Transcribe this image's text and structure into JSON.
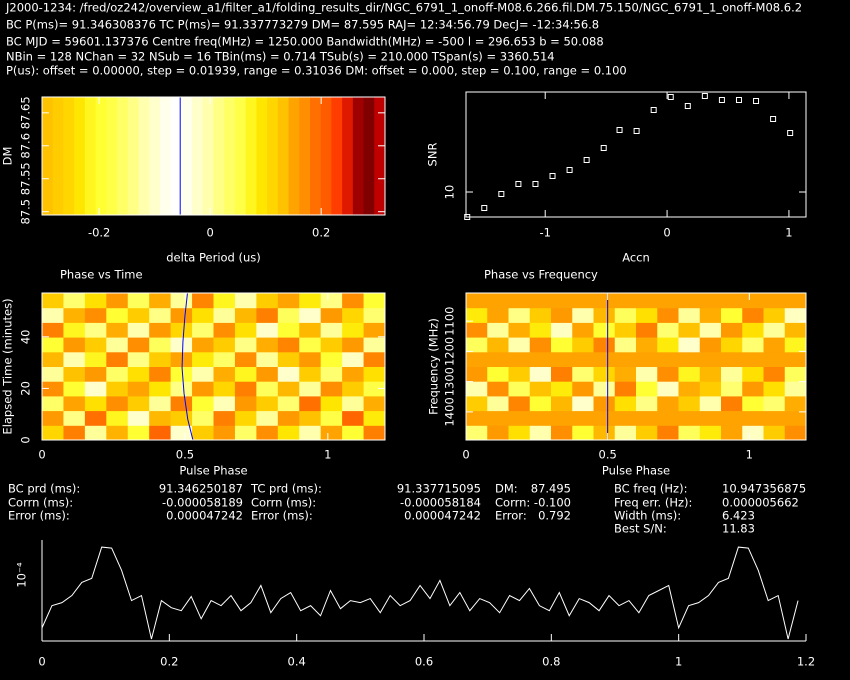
{
  "header": {
    "lines": [
      "J2000-1234: /fred/oz242/overview_a1/filter_a1/folding_results_dir/NGC_6791_1_onoff-M08.6.266.fil.DM.75.150/NGC_6791_1_onoff-M08.6.2",
      "BC P(ms)= 91.346308376 TC P(ms)= 91.337773279 DM= 87.595 RAJ= 12:34:56.79 DecJ= -12:34:56.8",
      "BC MJD = 59601.137376 Centre freq(MHz) = 1250.000 Bandwidth(MHz) = -500 l = 296.653 b = 50.088",
      "NBin = 128 NChan = 32 NSub = 16 TBin(ms) = 0.714 TSub(s) = 210.000 TSpan(s) = 3360.514",
      "P(us): offset = 0.00000, step = 0.01939, range = 0.31036 DM: offset = 0.000, step = 0.100, range = 0.100"
    ]
  },
  "stats": {
    "columns": [
      {
        "labels": [
          "BC prd (ms):",
          "Corrn (ms):",
          "Error (ms):"
        ],
        "values": [
          "91.346250187",
          "-0.000058189",
          "0.000047242"
        ]
      },
      {
        "labels": [
          "TC prd (ms):",
          "Corrn (ms):",
          "Error (ms):"
        ],
        "values": [
          "91.337715095",
          "-0.000058184",
          "0.000047242"
        ]
      },
      {
        "labels": [
          "DM:",
          "Corrn:",
          "Error:"
        ],
        "values": [
          "87.495",
          "-0.100",
          "0.792"
        ]
      },
      {
        "labels": [
          "BC freq (Hz):",
          "Freq err. (Hz):",
          "Width (ms):",
          "Best S/N:"
        ],
        "values": [
          "10.947356875",
          "0.000005662",
          "6.423",
          "11.83"
        ]
      }
    ]
  },
  "chart_data": [
    {
      "type": "heatmap",
      "xlabel": "delta Period (us)",
      "ylabel": "DM",
      "colormap": "heat",
      "xlim": [
        -0.303,
        0.315
      ],
      "ylim": [
        87.495,
        87.674
      ],
      "xticks": [
        -0.2,
        0,
        0.2
      ],
      "yticks": [
        87.5,
        87.55,
        87.6,
        87.65
      ],
      "z": [
        [
          0.68,
          0.7,
          0.72,
          0.75,
          0.78,
          0.8,
          0.82,
          0.85,
          0.88,
          0.92,
          0.95,
          0.98,
          1.0,
          0.98,
          0.95,
          0.92,
          0.88,
          0.85,
          0.82,
          0.78,
          0.75,
          0.72,
          0.68,
          0.62,
          0.58,
          0.52,
          0.48,
          0.42,
          0.35,
          0.25,
          0.2,
          0.3
        ]
      ],
      "marker_x": -0.054,
      "marker_color": "#0000ff"
    },
    {
      "type": "scatter",
      "xlabel": "Accn",
      "ylabel": "SNR",
      "color": "#ffffff",
      "xlim": [
        -1.65,
        1.14
      ],
      "ylim": [
        9.5,
        12.0
      ],
      "xticks": [
        -1,
        0,
        1
      ],
      "yticks": [
        10
      ],
      "x": [
        -1.64,
        -1.5,
        -1.36,
        -1.22,
        -1.08,
        -0.94,
        -0.8,
        -0.66,
        -0.52,
        -0.39,
        -0.25,
        -0.11,
        0.03,
        0.17,
        0.31,
        0.45,
        0.59,
        0.73,
        0.87,
        1.01
      ],
      "values": [
        9.5,
        9.68,
        9.96,
        10.16,
        10.16,
        10.32,
        10.44,
        10.64,
        10.88,
        11.24,
        11.22,
        11.64,
        11.9,
        11.72,
        11.92,
        11.84,
        11.84,
        11.82,
        11.46,
        11.18
      ]
    },
    {
      "type": "heatmap",
      "title": "Phase vs Time",
      "xlabel": "Pulse Phase",
      "ylabel": "Elapsed Time (minutes)",
      "colormap": "heat",
      "xlim": [
        0,
        1.2
      ],
      "ylim": [
        0,
        57
      ],
      "xticks": [
        0,
        0.5,
        1
      ],
      "yticks": [
        0,
        20,
        40
      ],
      "z": [
        [
          0.72,
          0.55,
          0.9,
          0.65,
          0.8,
          0.5,
          0.95,
          0.7,
          0.6,
          0.85,
          0.58,
          0.75,
          0.92,
          0.62,
          0.8,
          0.55
        ],
        [
          0.6,
          0.88,
          0.52,
          0.78,
          0.95,
          0.66,
          0.7,
          0.85,
          0.55,
          0.72,
          0.9,
          0.6,
          0.68,
          0.82,
          0.5,
          0.76
        ],
        [
          0.85,
          0.62,
          0.74,
          0.58,
          0.7,
          0.9,
          0.55,
          0.8,
          0.93,
          0.6,
          0.7,
          0.86,
          0.52,
          0.75,
          0.9,
          0.64
        ],
        [
          0.58,
          0.8,
          0.95,
          0.7,
          0.62,
          0.75,
          0.88,
          0.6,
          0.72,
          0.55,
          0.84,
          0.66,
          0.9,
          0.58,
          0.7,
          0.82
        ],
        [
          0.9,
          0.68,
          0.6,
          0.85,
          0.74,
          0.56,
          0.8,
          0.92,
          0.64,
          0.78,
          0.6,
          0.95,
          0.7,
          0.86,
          0.62,
          0.74
        ],
        [
          0.66,
          0.92,
          0.78,
          0.55,
          0.88,
          0.7,
          0.62,
          0.76,
          0.85,
          0.58,
          0.9,
          0.7,
          0.6,
          0.8,
          0.94,
          0.56
        ],
        [
          0.8,
          0.6,
          0.7,
          0.9,
          0.58,
          0.84,
          0.95,
          0.62,
          0.7,
          0.88,
          0.64,
          0.56,
          0.82,
          0.7,
          0.6,
          0.9
        ],
        [
          0.55,
          0.78,
          0.88,
          0.64,
          0.92,
          0.6,
          0.72,
          0.86,
          0.58,
          0.74,
          0.95,
          0.8,
          0.66,
          0.9,
          0.76,
          0.62
        ],
        [
          0.92,
          0.65,
          0.58,
          0.8,
          0.7,
          0.88,
          0.6,
          0.74,
          0.9,
          0.66,
          0.55,
          0.84,
          0.95,
          0.6,
          0.72,
          0.86
        ],
        [
          0.7,
          0.86,
          0.74,
          0.6,
          0.84,
          0.64,
          0.9,
          0.56,
          0.78,
          0.92,
          0.7,
          0.62,
          0.76,
          0.88,
          0.58,
          0.8
        ]
      ],
      "track": {
        "x": [
          0.509,
          0.5,
          0.493,
          0.49,
          0.497,
          0.51,
          0.528
        ],
        "y": [
          57,
          48,
          38,
          28,
          18,
          8,
          0
        ],
        "color": "#0000ff"
      }
    },
    {
      "type": "heatmap",
      "title": "Phase vs Frequency",
      "xlabel": "Pulse Phase",
      "ylabel": "Frequency (MHz)",
      "colormap": "heat",
      "xlim": [
        0,
        1.2
      ],
      "ylim": [
        1493,
        1007
      ],
      "xticks": [
        0,
        0.5,
        1
      ],
      "yticks": [
        1400,
        1300,
        1200,
        1100
      ],
      "z": [
        [
          0.86,
          0.6,
          0.74,
          0.92,
          0.58,
          0.8,
          0.66,
          0.9,
          0.7,
          0.55,
          0.84,
          0.76,
          0.62,
          0.94,
          0.7,
          0.58
        ],
        [
          0.62,
          0.62,
          0.62,
          0.62,
          0.62,
          0.62,
          0.62,
          0.62,
          0.62,
          0.62,
          0.62,
          0.62,
          0.62,
          0.62,
          0.62,
          0.62
        ],
        [
          0.7,
          0.9,
          0.56,
          0.8,
          0.66,
          0.95,
          0.6,
          0.74,
          0.88,
          0.62,
          0.7,
          0.92,
          0.55,
          0.8,
          0.86,
          0.64
        ],
        [
          0.92,
          0.58,
          0.84,
          0.68,
          0.76,
          0.6,
          0.9,
          0.55,
          0.8,
          0.94,
          0.64,
          0.7,
          0.86,
          0.6,
          0.74,
          0.9
        ],
        [
          0.6,
          0.8,
          0.7,
          0.95,
          0.55,
          0.86,
          0.72,
          0.64,
          0.92,
          0.58,
          0.78,
          0.66,
          0.9,
          0.74,
          0.56,
          0.84
        ],
        [
          0.62,
          0.62,
          0.62,
          0.62,
          0.62,
          0.62,
          0.62,
          0.62,
          0.62,
          0.62,
          0.62,
          0.62,
          0.62,
          0.62,
          0.62,
          0.62
        ],
        [
          0.84,
          0.66,
          0.92,
          0.58,
          0.8,
          0.7,
          0.56,
          0.88,
          0.64,
          0.76,
          0.95,
          0.6,
          0.72,
          0.86,
          0.62,
          0.78
        ],
        [
          0.58,
          0.9,
          0.64,
          0.76,
          0.94,
          0.62,
          0.8,
          0.7,
          0.55,
          0.86,
          0.68,
          0.92,
          0.6,
          0.74,
          0.9,
          0.66
        ],
        [
          0.76,
          0.62,
          0.88,
          0.7,
          0.6,
          0.92,
          0.66,
          0.84,
          0.74,
          0.58,
          0.9,
          0.64,
          0.8,
          0.56,
          0.7,
          0.94
        ],
        [
          0.62,
          0.62,
          0.62,
          0.62,
          0.62,
          0.62,
          0.62,
          0.62,
          0.62,
          0.62,
          0.62,
          0.62,
          0.62,
          0.62,
          0.62,
          0.62
        ]
      ],
      "marker_x": 0.5,
      "marker_color": "#0000ff"
    },
    {
      "type": "line",
      "ylabel": "10⁻⁴",
      "color": "#ffffff",
      "xlim": [
        0,
        1.2
      ],
      "ylim": [
        0,
        100
      ],
      "xticks": [
        0,
        0.2,
        0.4,
        0.6,
        0.8,
        1,
        1.2
      ],
      "x": [
        0,
        0.0156,
        0.0313,
        0.0469,
        0.0625,
        0.0781,
        0.0938,
        0.1094,
        0.125,
        0.1406,
        0.1563,
        0.1719,
        0.1875,
        0.2031,
        0.2188,
        0.2344,
        0.25,
        0.2656,
        0.2813,
        0.2969,
        0.3125,
        0.3281,
        0.3438,
        0.3594,
        0.375,
        0.3906,
        0.4063,
        0.4219,
        0.4375,
        0.4531,
        0.4688,
        0.4844,
        0.5,
        0.5156,
        0.5313,
        0.5469,
        0.5625,
        0.5781,
        0.5938,
        0.6094,
        0.625,
        0.6406,
        0.6563,
        0.6719,
        0.6875,
        0.7031,
        0.7188,
        0.7344,
        0.75,
        0.7656,
        0.7813,
        0.7969,
        0.8125,
        0.8281,
        0.8438,
        0.8594,
        0.875,
        0.8906,
        0.9063,
        0.9219,
        0.9375,
        0.9531,
        0.9688,
        0.9844,
        1,
        1.0156,
        1.0313,
        1.0469,
        1.0625,
        1.0781,
        1.0938,
        1.1094,
        1.125,
        1.1406,
        1.1563,
        1.1719,
        1.1875
      ],
      "values": [
        13,
        35,
        38,
        45,
        58,
        62,
        93,
        92,
        70,
        40,
        45,
        2,
        40,
        33,
        30,
        44,
        22,
        40,
        35,
        45,
        30,
        38,
        55,
        28,
        42,
        48,
        30,
        35,
        25,
        50,
        32,
        40,
        38,
        42,
        28,
        45,
        35,
        40,
        55,
        42,
        60,
        35,
        48,
        30,
        42,
        38,
        28,
        45,
        40,
        52,
        35,
        30,
        48,
        25,
        42,
        38,
        30,
        45,
        35,
        40,
        28,
        45,
        50,
        55,
        13,
        35,
        38,
        45,
        58,
        62,
        93,
        92,
        70,
        40,
        45,
        2,
        40
      ]
    }
  ]
}
